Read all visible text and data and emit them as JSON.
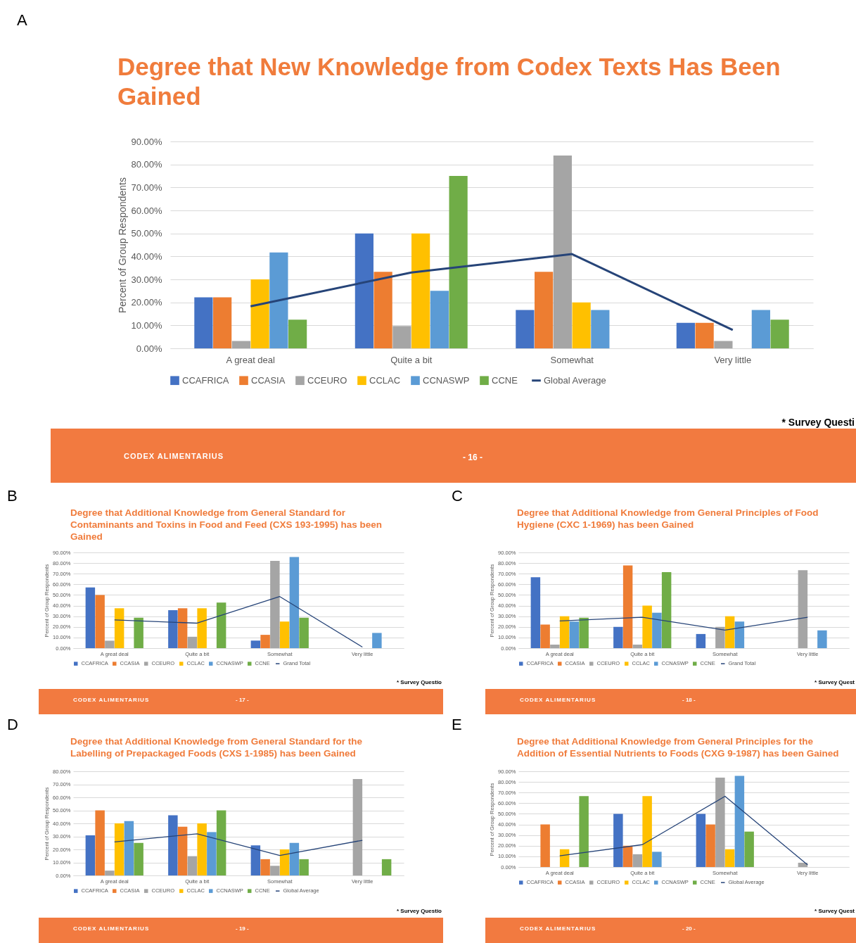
{
  "chart_data": [
    {
      "type": "bar",
      "title": "Degree that New Knowledge from Codex Texts Has Been Gained",
      "ylabel": "Percent of Group Respondents",
      "categories": [
        "A great deal",
        "Quite a bit",
        "Somewhat",
        "Very little"
      ],
      "ylim": [
        0,
        90
      ],
      "yticks": [
        {
          "value": 0,
          "label": "0.00%"
        },
        {
          "value": 10,
          "label": "10.00%"
        },
        {
          "value": 20,
          "label": "20.00%"
        },
        {
          "value": 30,
          "label": "30.00%"
        },
        {
          "value": 40,
          "label": "40.00%"
        },
        {
          "value": 50,
          "label": "50.00%"
        },
        {
          "value": 60,
          "label": "60.00%"
        },
        {
          "value": 70,
          "label": "70.00%"
        },
        {
          "value": 80,
          "label": "80.00%"
        },
        {
          "value": 90,
          "label": "90.00%"
        }
      ],
      "grid": "y",
      "legend": "bottom",
      "annotations": [
        "A",
        "* Survey Questi",
        "CODEX ALIMENTARIUS",
        "- 16 -"
      ],
      "series": [
        {
          "name": "CCAFRICA",
          "color": "#4472c4",
          "values": [
            22.2,
            50,
            16.7,
            11.1
          ]
        },
        {
          "name": "CCASIA",
          "color": "#ed7d31",
          "values": [
            22.2,
            33.3,
            33.3,
            11.1
          ]
        },
        {
          "name": "CCEURO",
          "color": "#a5a5a5",
          "values": [
            3.2,
            9.7,
            83.9,
            3.2
          ]
        },
        {
          "name": "CCLAC",
          "color": "#ffc000",
          "values": [
            30,
            50,
            20,
            null
          ]
        },
        {
          "name": "CCNASWP",
          "color": "#5b9bd5",
          "values": [
            41.7,
            25,
            16.7,
            16.7
          ]
        },
        {
          "name": "CCNE",
          "color": "#70ad47",
          "values": [
            12.5,
            75,
            null,
            12.5
          ]
        },
        {
          "name": "Global Average",
          "color": "#264478",
          "type": "line",
          "values": [
            18.3,
            33,
            41,
            8
          ]
        }
      ]
    },
    {
      "type": "bar",
      "title": "Degree that Additional Knowledge from General Standard for Contaminants and Toxins in Food and Feed (CXS 193-1995) has been Gained",
      "ylabel": "Percent of Group Respondents",
      "categories": [
        "A great deal",
        "Quite a bit",
        "Somewhat",
        "Very little"
      ],
      "ylim": [
        0,
        90
      ],
      "yticks": [
        {
          "value": 0,
          "label": "0.00%"
        },
        {
          "value": 10,
          "label": "10.00%"
        },
        {
          "value": 20,
          "label": "20.00%"
        },
        {
          "value": 30,
          "label": "30.00%"
        },
        {
          "value": 40,
          "label": "40.00%"
        },
        {
          "value": 50,
          "label": "50.00%"
        },
        {
          "value": 60,
          "label": "60.00%"
        },
        {
          "value": 70,
          "label": "70.00%"
        },
        {
          "value": 80,
          "label": "80.00%"
        },
        {
          "value": 90,
          "label": "90.00%"
        }
      ],
      "grid": "y",
      "legend": "bottom",
      "annotations": [
        "B",
        "* Survey Questio",
        "CODEX ALIMENTARIUS",
        "- 17 -"
      ],
      "series": [
        {
          "name": "CCAFRICA",
          "color": "#4472c4",
          "values": [
            57,
            35.7,
            7.1,
            null
          ]
        },
        {
          "name": "CCASIA",
          "color": "#ed7d31",
          "values": [
            50,
            37.5,
            12.5,
            null
          ]
        },
        {
          "name": "CCEURO",
          "color": "#a5a5a5",
          "values": [
            7,
            10.7,
            82,
            null
          ]
        },
        {
          "name": "CCLAC",
          "color": "#ffc000",
          "values": [
            37.5,
            37.5,
            25,
            null
          ]
        },
        {
          "name": "CCNASWP",
          "color": "#5b9bd5",
          "values": [
            null,
            null,
            85.7,
            14.3
          ]
        },
        {
          "name": "CCNE",
          "color": "#70ad47",
          "values": [
            28.6,
            42.9,
            28.6,
            null
          ]
        },
        {
          "name": "Grand Total",
          "color": "#264478",
          "type": "line",
          "values": [
            26.5,
            23.5,
            48.5,
            1
          ]
        }
      ]
    },
    {
      "type": "bar",
      "title": "Degree that Additional Knowledge from General Principles of Food Hygiene (CXC 1-1969) has been Gained",
      "ylabel": "Percent of Group Respondents",
      "categories": [
        "A great deal",
        "Quite a bit",
        "Somewhat",
        "Very little"
      ],
      "ylim": [
        0,
        90
      ],
      "yticks": [
        {
          "value": 0,
          "label": "0.00%"
        },
        {
          "value": 10,
          "label": "10.00%"
        },
        {
          "value": 20,
          "label": "20.00%"
        },
        {
          "value": 30,
          "label": "30.00%"
        },
        {
          "value": 40,
          "label": "40.00%"
        },
        {
          "value": 50,
          "label": "50.00%"
        },
        {
          "value": 60,
          "label": "60.00%"
        },
        {
          "value": 70,
          "label": "70.00%"
        },
        {
          "value": 80,
          "label": "80.00%"
        },
        {
          "value": 90,
          "label": "90.00%"
        }
      ],
      "grid": "y",
      "legend": "bottom",
      "annotations": [
        "C",
        "* Survey Quest",
        "CODEX ALIMENTARIUS",
        "- 18 -"
      ],
      "series": [
        {
          "name": "CCAFRICA",
          "color": "#4472c4",
          "values": [
            66.7,
            20,
            13.3,
            null
          ]
        },
        {
          "name": "CCASIA",
          "color": "#ed7d31",
          "values": [
            22.2,
            77.8,
            null,
            null
          ]
        },
        {
          "name": "CCEURO",
          "color": "#a5a5a5",
          "values": [
            3.3,
            3.3,
            20,
            73.3
          ]
        },
        {
          "name": "CCLAC",
          "color": "#ffc000",
          "values": [
            30,
            40,
            30,
            null
          ]
        },
        {
          "name": "CCNASWP",
          "color": "#5b9bd5",
          "values": [
            25,
            33.3,
            25,
            16.7
          ]
        },
        {
          "name": "CCNE",
          "color": "#70ad47",
          "values": [
            28.6,
            71.4,
            null,
            null
          ]
        },
        {
          "name": "Grand Total",
          "color": "#264478",
          "type": "line",
          "values": [
            25.5,
            29,
            17,
            29
          ]
        }
      ]
    },
    {
      "type": "bar",
      "title": "Degree that Additional Knowledge from General Standard for the Labelling of Prepackaged Foods (CXS 1-1985) has been Gained",
      "ylabel": "Percent of Group Respondents",
      "categories": [
        "A great deal",
        "Quite a bit",
        "Somewhat",
        "Very little"
      ],
      "ylim": [
        0,
        80
      ],
      "yticks": [
        {
          "value": 0,
          "label": "0.00%"
        },
        {
          "value": 10,
          "label": "10.00%"
        },
        {
          "value": 20,
          "label": "20.00%"
        },
        {
          "value": 30,
          "label": "30.00%"
        },
        {
          "value": 40,
          "label": "40.00%"
        },
        {
          "value": 50,
          "label": "50.00%"
        },
        {
          "value": 60,
          "label": "60.00%"
        },
        {
          "value": 70,
          "label": "70.00%"
        },
        {
          "value": 80,
          "label": "80.00%"
        }
      ],
      "grid": "y",
      "legend": "bottom",
      "annotations": [
        "D",
        "* Survey Questio",
        "CODEX ALIMENTARIUS",
        "- 19 -"
      ],
      "series": [
        {
          "name": "CCAFRICA",
          "color": "#4472c4",
          "values": [
            30.8,
            46.2,
            23.1,
            null
          ]
        },
        {
          "name": "CCASIA",
          "color": "#ed7d31",
          "values": [
            50,
            37.5,
            12.5,
            null
          ]
        },
        {
          "name": "CCEURO",
          "color": "#a5a5a5",
          "values": [
            3.7,
            14.8,
            7.4,
            74.1
          ]
        },
        {
          "name": "CCLAC",
          "color": "#ffc000",
          "values": [
            40,
            40,
            20,
            null
          ]
        },
        {
          "name": "CCNASWP",
          "color": "#5b9bd5",
          "values": [
            41.7,
            33.3,
            25,
            null
          ]
        },
        {
          "name": "CCNE",
          "color": "#70ad47",
          "values": [
            25,
            50,
            12.5,
            12.5
          ]
        },
        {
          "name": "Global Average",
          "color": "#264478",
          "type": "line",
          "values": [
            25.7,
            32,
            15.3,
            27
          ]
        }
      ]
    },
    {
      "type": "bar",
      "title": "Degree that Additional Knowledge from General Principles for the Addition of Essential Nutrients to Foods (CXG 9-1987) has been Gained",
      "ylabel": "Percent of Group Respondents",
      "categories": [
        "A great deal",
        "Quite a bit",
        "Somewhat",
        "Very little"
      ],
      "ylim": [
        0,
        90
      ],
      "yticks": [
        {
          "value": 0,
          "label": "0.00%"
        },
        {
          "value": 10,
          "label": "10.00%"
        },
        {
          "value": 20,
          "label": "20.00%"
        },
        {
          "value": 30,
          "label": "30.00%"
        },
        {
          "value": 40,
          "label": "40.00%"
        },
        {
          "value": 50,
          "label": "50.00%"
        },
        {
          "value": 60,
          "label": "60.00%"
        },
        {
          "value": 70,
          "label": "70.00%"
        },
        {
          "value": 80,
          "label": "80.00%"
        },
        {
          "value": 90,
          "label": "90.00%"
        }
      ],
      "grid": "y",
      "legend": "bottom",
      "annotations": [
        "E",
        "* Survey Quest",
        "CODEX ALIMENTARIUS",
        "- 20 -"
      ],
      "series": [
        {
          "name": "CCAFRICA",
          "color": "#4472c4",
          "values": [
            null,
            50,
            50,
            null
          ]
        },
        {
          "name": "CCASIA",
          "color": "#ed7d31",
          "values": [
            40,
            20,
            40,
            null
          ]
        },
        {
          "name": "CCEURO",
          "color": "#a5a5a5",
          "values": [
            null,
            12,
            84,
            4
          ]
        },
        {
          "name": "CCLAC",
          "color": "#ffc000",
          "values": [
            16.7,
            66.7,
            16.7,
            null
          ]
        },
        {
          "name": "CCNASWP",
          "color": "#5b9bd5",
          "values": [
            null,
            14.3,
            85.7,
            null
          ]
        },
        {
          "name": "CCNE",
          "color": "#70ad47",
          "values": [
            66.7,
            null,
            33.3,
            null
          ]
        },
        {
          "name": "Global Average",
          "color": "#264478",
          "type": "line",
          "values": [
            10.5,
            21,
            66.5,
            2
          ]
        }
      ]
    }
  ]
}
